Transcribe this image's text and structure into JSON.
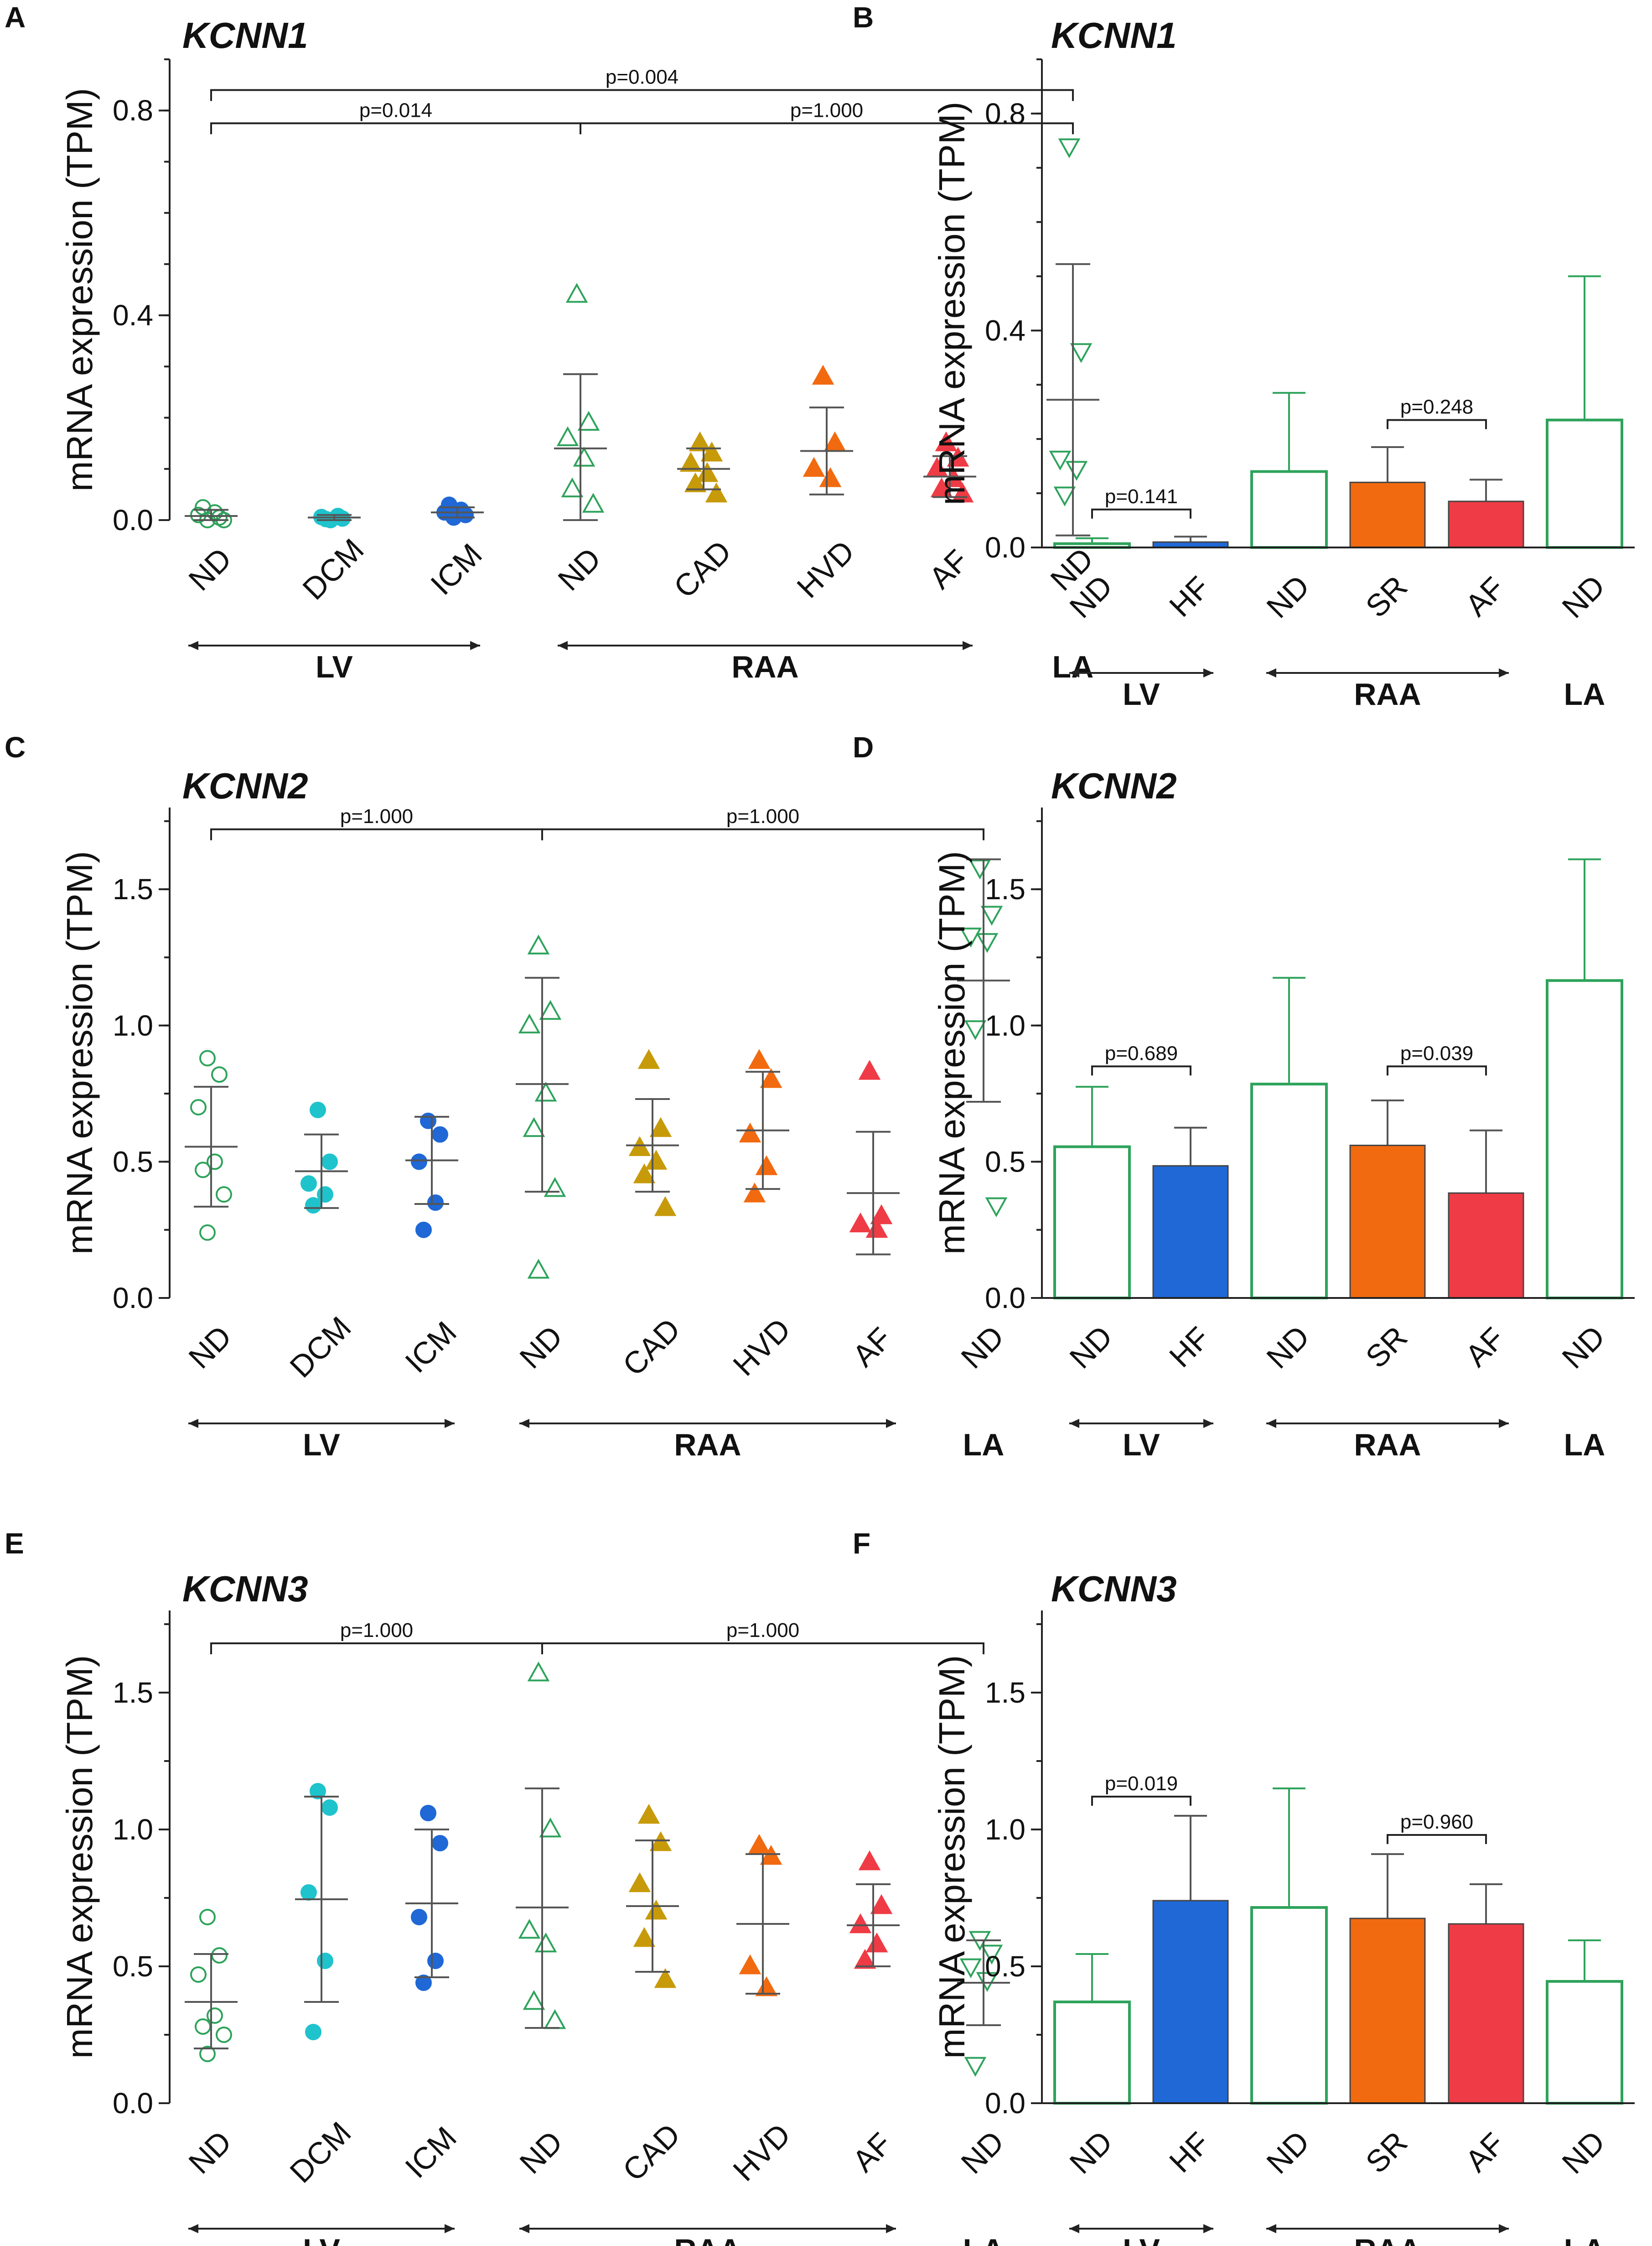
{
  "colors": {
    "nd": "#2ea35b",
    "dcm": "#1fc3cc",
    "icm": "#1f68d6",
    "cad": "#c79a0a",
    "hvd": "#f26a0f",
    "af": "#ef3b45",
    "sr": "#f26a0f",
    "hf": "#1f68d6",
    "error": "#555555"
  },
  "chart_data": [
    {
      "panel": "A",
      "type": "scatter",
      "title": "KCNN1",
      "ylabel": "mRNA expression (TPM)",
      "ylim": [
        0,
        0.9
      ],
      "yticks": [
        "0.0",
        "0.4",
        "0.8"
      ],
      "ytick_values": [
        0,
        0.4,
        0.8
      ],
      "minor_step": 0.1,
      "groups": [
        {
          "label": "LV",
          "from": 0,
          "to": 2
        },
        {
          "label": "RAA",
          "from": 3,
          "to": 6
        },
        {
          "label": "LA",
          "from": 7,
          "to": 7
        }
      ],
      "series": [
        {
          "name": "ND",
          "marker": "circle-open",
          "color": "nd",
          "mean": 0.008,
          "sd_low": 0.0,
          "sd_high": 0.02,
          "points": [
            0.0,
            0.005,
            0.01,
            0.015,
            0.025,
            0.0
          ]
        },
        {
          "name": "DCM",
          "marker": "circle",
          "color": "dcm",
          "mean": 0.005,
          "sd_low": 0.0,
          "sd_high": 0.01,
          "points": [
            0.0,
            0.003,
            0.006,
            0.008,
            0.002
          ]
        },
        {
          "name": "ICM",
          "marker": "circle",
          "color": "icm",
          "mean": 0.015,
          "sd_low": 0.005,
          "sd_high": 0.025,
          "points": [
            0.005,
            0.01,
            0.015,
            0.02,
            0.03
          ]
        },
        {
          "name": "ND",
          "marker": "triangle-up-open",
          "color": "nd",
          "mean": 0.14,
          "sd_low": 0.0,
          "sd_high": 0.285,
          "points": [
            0.44,
            0.19,
            0.16,
            0.12,
            0.06,
            0.03
          ]
        },
        {
          "name": "CAD",
          "marker": "triangle-up",
          "color": "cad",
          "mean": 0.1,
          "sd_low": 0.06,
          "sd_high": 0.14,
          "points": [
            0.15,
            0.13,
            0.11,
            0.09,
            0.07,
            0.05
          ]
        },
        {
          "name": "HVD",
          "marker": "triangle-up",
          "color": "hvd",
          "mean": 0.135,
          "sd_low": 0.05,
          "sd_high": 0.22,
          "points": [
            0.28,
            0.15,
            0.1,
            0.08
          ]
        },
        {
          "name": "AF",
          "marker": "triangle-up",
          "color": "af",
          "mean": 0.085,
          "sd_low": 0.045,
          "sd_high": 0.125,
          "points": [
            0.15,
            0.12,
            0.1,
            0.08,
            0.06,
            0.05
          ]
        },
        {
          "name": "ND",
          "marker": "triangle-down-open",
          "color": "nd",
          "mean": 0.235,
          "sd_low": -0.03,
          "sd_high": 0.5,
          "points": [
            0.73,
            0.33,
            0.12,
            0.1,
            0.05
          ]
        }
      ],
      "brackets": [
        {
          "label": "p=0.014",
          "from": 0,
          "to": 3,
          "y": 0.775
        },
        {
          "label": "p=1.000",
          "from": 3,
          "to": 7,
          "y": 0.775
        },
        {
          "label": "p=0.004",
          "from": 0,
          "to": 7,
          "y": 0.84
        }
      ]
    },
    {
      "panel": "B",
      "type": "bar",
      "title": "KCNN1",
      "ylabel": "mRNA expression (TPM)",
      "ylim": [
        0,
        0.9
      ],
      "yticks": [
        "0.0",
        "0.4",
        "0.8"
      ],
      "ytick_values": [
        0,
        0.4,
        0.8
      ],
      "minor_step": 0.1,
      "groups": [
        {
          "label": "LV",
          "from": 0,
          "to": 1
        },
        {
          "label": "RAA",
          "from": 2,
          "to": 4
        },
        {
          "label": "LA",
          "from": 5,
          "to": 5
        }
      ],
      "bars": [
        {
          "name": "ND",
          "value": 0.007,
          "err": 0.017,
          "fill": "none",
          "color": "nd"
        },
        {
          "name": "HF",
          "value": 0.01,
          "err": 0.02,
          "fill": "hf",
          "color": "hf"
        },
        {
          "name": "ND",
          "value": 0.14,
          "err": 0.285,
          "fill": "none",
          "color": "nd"
        },
        {
          "name": "SR",
          "value": 0.12,
          "err": 0.185,
          "fill": "sr",
          "color": "sr"
        },
        {
          "name": "AF",
          "value": 0.085,
          "err": 0.125,
          "fill": "af",
          "color": "af"
        },
        {
          "name": "ND",
          "value": 0.235,
          "err": 0.5,
          "fill": "none",
          "color": "nd"
        }
      ],
      "brackets": [
        {
          "label": "p=0.141",
          "from": 0,
          "to": 1,
          "y": 0.07
        },
        {
          "label": "p=0.248",
          "from": 3,
          "to": 4,
          "y": 0.235
        }
      ]
    },
    {
      "panel": "C",
      "type": "scatter",
      "title": "KCNN2",
      "ylabel": "mRNA expression (TPM)",
      "ylim": [
        0,
        1.8
      ],
      "yticks": [
        "0.0",
        "0.5",
        "1.0",
        "1.5"
      ],
      "ytick_values": [
        0,
        0.5,
        1.0,
        1.5
      ],
      "minor_step": 0.25,
      "groups": [
        {
          "label": "LV",
          "from": 0,
          "to": 2
        },
        {
          "label": "RAA",
          "from": 3,
          "to": 6
        },
        {
          "label": "LA",
          "from": 7,
          "to": 7
        }
      ],
      "series": [
        {
          "name": "ND",
          "marker": "circle-open",
          "color": "nd",
          "mean": 0.555,
          "sd_low": 0.335,
          "sd_high": 0.775,
          "points": [
            0.88,
            0.82,
            0.7,
            0.5,
            0.47,
            0.38,
            0.24
          ]
        },
        {
          "name": "DCM",
          "marker": "circle",
          "color": "dcm",
          "mean": 0.465,
          "sd_low": 0.33,
          "sd_high": 0.6,
          "points": [
            0.69,
            0.5,
            0.42,
            0.38,
            0.34
          ]
        },
        {
          "name": "ICM",
          "marker": "circle",
          "color": "icm",
          "mean": 0.505,
          "sd_low": 0.345,
          "sd_high": 0.665,
          "points": [
            0.65,
            0.6,
            0.5,
            0.35,
            0.25
          ]
        },
        {
          "name": "ND",
          "marker": "triangle-up-open",
          "color": "nd",
          "mean": 0.785,
          "sd_low": 0.39,
          "sd_high": 1.175,
          "points": [
            1.29,
            1.05,
            1.0,
            0.75,
            0.62,
            0.4,
            0.1
          ]
        },
        {
          "name": "CAD",
          "marker": "triangle-up",
          "color": "cad",
          "mean": 0.56,
          "sd_low": 0.39,
          "sd_high": 0.73,
          "points": [
            0.87,
            0.62,
            0.55,
            0.5,
            0.45,
            0.33
          ]
        },
        {
          "name": "HVD",
          "marker": "triangle-up",
          "color": "hvd",
          "mean": 0.615,
          "sd_low": 0.4,
          "sd_high": 0.83,
          "points": [
            0.87,
            0.8,
            0.6,
            0.48,
            0.38
          ]
        },
        {
          "name": "AF",
          "marker": "triangle-up",
          "color": "af",
          "mean": 0.385,
          "sd_low": 0.16,
          "sd_high": 0.61,
          "points": [
            0.83,
            0.3,
            0.27,
            0.25
          ]
        },
        {
          "name": "ND",
          "marker": "triangle-down-open",
          "color": "nd",
          "mean": 1.165,
          "sd_low": 0.72,
          "sd_high": 1.61,
          "points": [
            1.58,
            1.41,
            1.33,
            1.31,
            0.99,
            0.34
          ]
        }
      ],
      "brackets": [
        {
          "label": "p=1.000",
          "from": 0,
          "to": 3,
          "y": 1.72
        },
        {
          "label": "p=1.000",
          "from": 3,
          "to": 7,
          "y": 1.72
        }
      ]
    },
    {
      "panel": "D",
      "type": "bar",
      "title": "KCNN2",
      "ylabel": "mRNA expression (TPM)",
      "ylim": [
        0,
        1.8
      ],
      "yticks": [
        "0.0",
        "0.5",
        "1.0",
        "1.5"
      ],
      "ytick_values": [
        0,
        0.5,
        1.0,
        1.5
      ],
      "minor_step": 0.25,
      "groups": [
        {
          "label": "LV",
          "from": 0,
          "to": 1
        },
        {
          "label": "RAA",
          "from": 2,
          "to": 4
        },
        {
          "label": "LA",
          "from": 5,
          "to": 5
        }
      ],
      "bars": [
        {
          "name": "ND",
          "value": 0.555,
          "err": 0.775,
          "fill": "none",
          "color": "nd"
        },
        {
          "name": "HF",
          "value": 0.485,
          "err": 0.625,
          "fill": "hf",
          "color": "hf"
        },
        {
          "name": "ND",
          "value": 0.785,
          "err": 1.175,
          "fill": "none",
          "color": "nd"
        },
        {
          "name": "SR",
          "value": 0.56,
          "err": 0.725,
          "fill": "sr",
          "color": "sr"
        },
        {
          "name": "AF",
          "value": 0.385,
          "err": 0.615,
          "fill": "af",
          "color": "af"
        },
        {
          "name": "ND",
          "value": 1.165,
          "err": 1.61,
          "fill": "none",
          "color": "nd"
        }
      ],
      "brackets": [
        {
          "label": "p=0.689",
          "from": 0,
          "to": 1,
          "y": 0.85
        },
        {
          "label": "p=0.039",
          "from": 3,
          "to": 4,
          "y": 0.85
        }
      ]
    },
    {
      "panel": "E",
      "type": "scatter",
      "title": "KCNN3",
      "ylabel": "mRNA expression (TPM)",
      "ylim": [
        0,
        1.8
      ],
      "yticks": [
        "0.0",
        "0.5",
        "1.0",
        "1.5"
      ],
      "ytick_values": [
        0,
        0.5,
        1.0,
        1.5
      ],
      "minor_step": 0.25,
      "groups": [
        {
          "label": "LV",
          "from": 0,
          "to": 2
        },
        {
          "label": "RAA",
          "from": 3,
          "to": 6
        },
        {
          "label": "LA",
          "from": 7,
          "to": 7
        }
      ],
      "series": [
        {
          "name": "ND",
          "marker": "circle-open",
          "color": "nd",
          "mean": 0.37,
          "sd_low": 0.2,
          "sd_high": 0.545,
          "points": [
            0.68,
            0.54,
            0.47,
            0.32,
            0.28,
            0.25,
            0.18
          ]
        },
        {
          "name": "DCM",
          "marker": "circle",
          "color": "dcm",
          "mean": 0.745,
          "sd_low": 0.37,
          "sd_high": 1.12,
          "points": [
            1.14,
            1.08,
            0.77,
            0.52,
            0.26
          ]
        },
        {
          "name": "ICM",
          "marker": "circle",
          "color": "icm",
          "mean": 0.73,
          "sd_low": 0.46,
          "sd_high": 1.0,
          "points": [
            1.06,
            0.95,
            0.68,
            0.52,
            0.44
          ]
        },
        {
          "name": "ND",
          "marker": "triangle-up-open",
          "color": "nd",
          "mean": 0.715,
          "sd_low": 0.275,
          "sd_high": 1.15,
          "points": [
            1.57,
            1.0,
            0.63,
            0.58,
            0.37,
            0.3
          ]
        },
        {
          "name": "CAD",
          "marker": "triangle-up",
          "color": "cad",
          "mean": 0.72,
          "sd_low": 0.48,
          "sd_high": 0.96,
          "points": [
            1.05,
            0.95,
            0.8,
            0.7,
            0.6,
            0.45
          ]
        },
        {
          "name": "HVD",
          "marker": "triangle-up",
          "color": "hvd",
          "mean": 0.655,
          "sd_low": 0.4,
          "sd_high": 0.91,
          "points": [
            0.94,
            0.9,
            0.5,
            0.42
          ]
        },
        {
          "name": "AF",
          "marker": "triangle-up",
          "color": "af",
          "mean": 0.65,
          "sd_low": 0.5,
          "sd_high": 0.8,
          "points": [
            0.88,
            0.72,
            0.65,
            0.58,
            0.52
          ]
        },
        {
          "name": "ND",
          "marker": "triangle-down-open",
          "color": "nd",
          "mean": 0.44,
          "sd_low": 0.285,
          "sd_high": 0.595,
          "points": [
            0.6,
            0.55,
            0.5,
            0.45,
            0.14
          ]
        }
      ],
      "brackets": [
        {
          "label": "p=1.000",
          "from": 0,
          "to": 3,
          "y": 1.68
        },
        {
          "label": "p=1.000",
          "from": 3,
          "to": 7,
          "y": 1.68
        }
      ]
    },
    {
      "panel": "F",
      "type": "bar",
      "title": "KCNN3",
      "ylabel": "mRNA expression (TPM)",
      "ylim": [
        0,
        1.8
      ],
      "yticks": [
        "0.0",
        "0.5",
        "1.0",
        "1.5"
      ],
      "ytick_values": [
        0,
        0.5,
        1.0,
        1.5
      ],
      "minor_step": 0.25,
      "groups": [
        {
          "label": "LV",
          "from": 0,
          "to": 1
        },
        {
          "label": "RAA",
          "from": 2,
          "to": 4
        },
        {
          "label": "LA",
          "from": 5,
          "to": 5
        }
      ],
      "bars": [
        {
          "name": "ND",
          "value": 0.37,
          "err": 0.545,
          "fill": "none",
          "color": "nd"
        },
        {
          "name": "HF",
          "value": 0.74,
          "err": 1.05,
          "fill": "hf",
          "color": "hf"
        },
        {
          "name": "ND",
          "value": 0.715,
          "err": 1.15,
          "fill": "none",
          "color": "nd"
        },
        {
          "name": "SR",
          "value": 0.675,
          "err": 0.91,
          "fill": "sr",
          "color": "sr"
        },
        {
          "name": "AF",
          "value": 0.655,
          "err": 0.8,
          "fill": "af",
          "color": "af"
        },
        {
          "name": "ND",
          "value": 0.445,
          "err": 0.595,
          "fill": "none",
          "color": "nd"
        }
      ],
      "brackets": [
        {
          "label": "p=0.019",
          "from": 0,
          "to": 1,
          "y": 1.12
        },
        {
          "label": "p=0.960",
          "from": 3,
          "to": 4,
          "y": 0.98
        }
      ]
    }
  ]
}
